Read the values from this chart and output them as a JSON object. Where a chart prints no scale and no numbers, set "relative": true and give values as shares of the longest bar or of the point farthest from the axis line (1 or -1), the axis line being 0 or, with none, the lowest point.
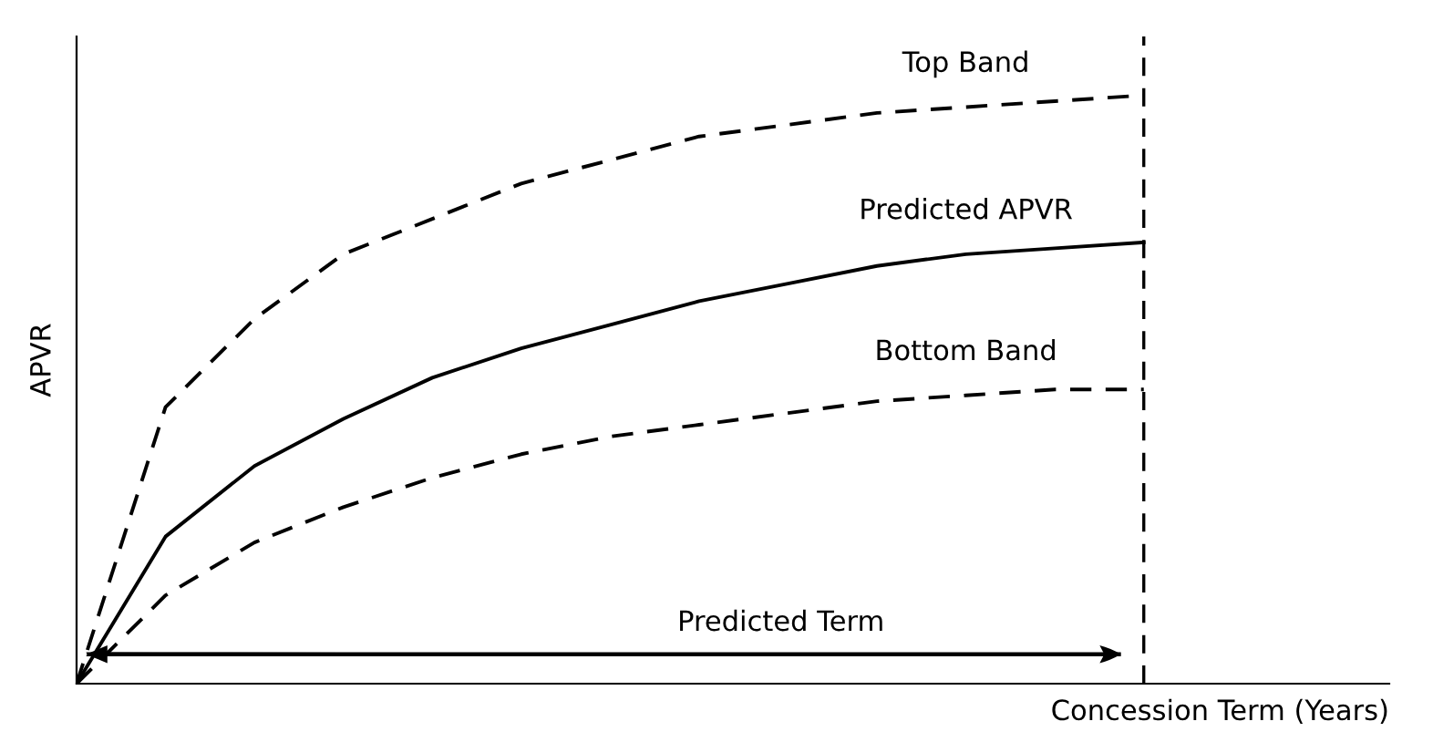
{
  "chart_data": {
    "type": "line",
    "relative": true,
    "xlabel": "Concession Term (Years)",
    "ylabel": "APVR",
    "categories": [
      null,
      null,
      null,
      null,
      null,
      null,
      null,
      null,
      null,
      null,
      null,
      null,
      null
    ],
    "series": [
      {
        "name": "Top Band",
        "color": "#000000",
        "line_style": "dashed",
        "values": [
          0,
          0.47,
          0.62,
          0.73,
          0.79,
          0.85,
          0.89,
          0.93,
          0.95,
          0.97,
          0.98,
          0.99,
          1
        ]
      },
      {
        "name": "Predicted APVR",
        "color": "#000000",
        "line_style": "solid",
        "values": [
          0,
          0.25,
          0.37,
          0.45,
          0.52,
          0.57,
          0.61,
          0.65,
          0.68,
          0.71,
          0.73,
          0.74,
          0.75
        ]
      },
      {
        "name": "Bottom Band",
        "color": "#000000",
        "line_style": "dashed",
        "values": [
          0,
          0.15,
          0.24,
          0.3,
          0.35,
          0.39,
          0.42,
          0.44,
          0.46,
          0.48,
          0.49,
          0.5,
          0.5
        ]
      }
    ],
    "annotations": [
      "Predicted Term"
    ],
    "legend": false,
    "marker": "none"
  }
}
